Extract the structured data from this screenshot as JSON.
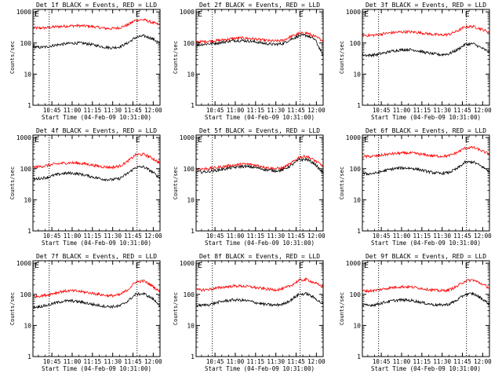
{
  "figure": {
    "xlabel": "Start Time (04-Feb-09 10:31:00)",
    "ylabel": "Counts/sec",
    "corner_marker": "E",
    "x_ticks": [
      "10:45",
      "11:00",
      "11:15",
      "11:30",
      "11:45",
      "12:00"
    ],
    "y_ticks": [
      "1",
      "10",
      "100",
      "1000"
    ],
    "colors": {
      "events": "#000000",
      "lld": "#ff0000",
      "axes": "#000000",
      "background": "#ffffff"
    }
  },
  "chart_data": [
    {
      "type": "line",
      "title": "Det 1f BLACK = Events, RED = LLD",
      "x": [
        "10:31",
        "10:35",
        "10:41",
        "10:47",
        "10:53",
        "10:59",
        "11:05",
        "11:11",
        "11:17",
        "11:23",
        "11:29",
        "11:35",
        "11:41",
        "11:47",
        "11:53",
        "11:59",
        "12:05"
      ],
      "xlim": [
        "10:31",
        "12:05"
      ],
      "ylim": [
        1,
        1200
      ],
      "yscale": "log",
      "grid": false,
      "vlines": [
        "10:43",
        "11:48"
      ],
      "series": [
        {
          "values": [
            310,
            300,
            310,
            330,
            345,
            355,
            360,
            350,
            330,
            300,
            290,
            310,
            380,
            540,
            560,
            460,
            380
          ]
        },
        {
          "values": [
            78,
            72,
            75,
            85,
            92,
            98,
            100,
            95,
            85,
            75,
            70,
            75,
            100,
            150,
            170,
            140,
            100
          ]
        }
      ]
    },
    {
      "type": "line",
      "title": "Det 2f BLACK = Events, RED = LLD",
      "x": [
        "10:31",
        "10:35",
        "10:41",
        "10:47",
        "10:53",
        "10:59",
        "11:05",
        "11:11",
        "11:17",
        "11:23",
        "11:29",
        "11:35",
        "11:41",
        "11:47",
        "11:53",
        "11:59",
        "12:05"
      ],
      "xlim": [
        "10:31",
        "12:05"
      ],
      "ylim": [
        1,
        1200
      ],
      "yscale": "log",
      "grid": false,
      "vlines": [
        "10:43",
        "11:48"
      ],
      "series": [
        {
          "values": [
            110,
            110,
            115,
            120,
            130,
            140,
            145,
            140,
            130,
            120,
            115,
            120,
            160,
            200,
            210,
            160,
            120
          ]
        },
        {
          "values": [
            85,
            90,
            95,
            100,
            110,
            120,
            120,
            115,
            105,
            95,
            90,
            95,
            130,
            170,
            175,
            130,
            40
          ]
        }
      ]
    },
    {
      "type": "line",
      "title": "Det 3f BLACK = Events, RED = LLD",
      "x": [
        "10:31",
        "10:35",
        "10:41",
        "10:47",
        "10:53",
        "10:59",
        "11:05",
        "11:11",
        "11:17",
        "11:23",
        "11:29",
        "11:35",
        "11:41",
        "11:47",
        "11:53",
        "11:59",
        "12:05"
      ],
      "xlim": [
        "10:31",
        "12:05"
      ],
      "ylim": [
        1,
        1200
      ],
      "yscale": "log",
      "grid": false,
      "vlines": [
        "10:43",
        "11:48"
      ],
      "series": [
        {
          "values": [
            180,
            175,
            180,
            200,
            215,
            225,
            230,
            220,
            205,
            190,
            180,
            190,
            240,
            330,
            340,
            280,
            220
          ]
        },
        {
          "values": [
            42,
            40,
            42,
            48,
            55,
            60,
            62,
            58,
            50,
            45,
            42,
            45,
            60,
            90,
            95,
            70,
            50
          ]
        }
      ]
    },
    {
      "type": "line",
      "title": "Det 4f BLACK = Events, RED = LLD",
      "x": [
        "10:31",
        "10:35",
        "10:41",
        "10:47",
        "10:53",
        "10:59",
        "11:05",
        "11:11",
        "11:17",
        "11:23",
        "11:29",
        "11:35",
        "11:41",
        "11:47",
        "11:53",
        "11:59",
        "12:05"
      ],
      "xlim": [
        "10:31",
        "12:05"
      ],
      "ylim": [
        1,
        1200
      ],
      "yscale": "log",
      "grid": false,
      "vlines": [
        "10:43",
        "11:48"
      ],
      "series": [
        {
          "values": [
            110,
            115,
            125,
            140,
            150,
            155,
            150,
            140,
            125,
            115,
            110,
            120,
            170,
            280,
            290,
            220,
            150
          ]
        },
        {
          "values": [
            45,
            48,
            52,
            62,
            70,
            72,
            68,
            60,
            52,
            46,
            44,
            48,
            70,
            110,
            115,
            80,
            50
          ]
        }
      ]
    },
    {
      "type": "line",
      "title": "Det 5f BLACK = Events, RED = LLD",
      "x": [
        "10:31",
        "10:35",
        "10:41",
        "10:47",
        "10:53",
        "10:59",
        "11:05",
        "11:11",
        "11:17",
        "11:23",
        "11:29",
        "11:35",
        "11:41",
        "11:47",
        "11:53",
        "11:59",
        "12:05"
      ],
      "xlim": [
        "10:31",
        "12:05"
      ],
      "ylim": [
        1,
        1200
      ],
      "yscale": "log",
      "grid": false,
      "vlines": [
        "10:43",
        "11:48"
      ],
      "series": [
        {
          "values": [
            100,
            98,
            102,
            110,
            120,
            130,
            140,
            138,
            125,
            110,
            100,
            105,
            145,
            230,
            250,
            180,
            120
          ]
        },
        {
          "values": [
            80,
            78,
            82,
            90,
            100,
            110,
            118,
            115,
            105,
            92,
            85,
            90,
            125,
            190,
            200,
            140,
            70
          ]
        }
      ]
    },
    {
      "type": "line",
      "title": "Det 6f BLACK = Events, RED = LLD",
      "x": [
        "10:31",
        "10:35",
        "10:41",
        "10:47",
        "10:53",
        "10:59",
        "11:05",
        "11:11",
        "11:17",
        "11:23",
        "11:29",
        "11:35",
        "11:41",
        "11:47",
        "11:53",
        "11:59",
        "12:05"
      ],
      "xlim": [
        "10:31",
        "12:05"
      ],
      "ylim": [
        1,
        1200
      ],
      "yscale": "log",
      "grid": false,
      "vlines": [
        "10:43",
        "11:48"
      ],
      "series": [
        {
          "values": [
            250,
            245,
            255,
            280,
            300,
            315,
            320,
            305,
            280,
            260,
            250,
            260,
            330,
            460,
            480,
            380,
            290
          ]
        },
        {
          "values": [
            70,
            68,
            72,
            85,
            98,
            105,
            105,
            98,
            85,
            75,
            70,
            75,
            100,
            160,
            165,
            120,
            80
          ]
        }
      ]
    },
    {
      "type": "line",
      "title": "Det 7f BLACK = Events, RED = LLD",
      "x": [
        "10:31",
        "10:35",
        "10:41",
        "10:47",
        "10:53",
        "10:59",
        "11:05",
        "11:11",
        "11:17",
        "11:23",
        "11:29",
        "11:35",
        "11:41",
        "11:47",
        "11:53",
        "11:59",
        "12:05"
      ],
      "xlim": [
        "10:31",
        "12:05"
      ],
      "ylim": [
        1,
        1200
      ],
      "yscale": "log",
      "grid": false,
      "vlines": [
        "10:43",
        "11:48"
      ],
      "series": [
        {
          "values": [
            85,
            88,
            95,
            110,
            125,
            130,
            125,
            115,
            105,
            95,
            90,
            95,
            140,
            250,
            270,
            190,
            120
          ]
        },
        {
          "values": [
            38,
            40,
            44,
            52,
            60,
            62,
            58,
            52,
            46,
            42,
            40,
            42,
            60,
            100,
            105,
            75,
            45
          ]
        }
      ]
    },
    {
      "type": "line",
      "title": "Det 8f BLACK = Events, RED = LLD",
      "x": [
        "10:31",
        "10:35",
        "10:41",
        "10:47",
        "10:53",
        "10:59",
        "11:05",
        "11:11",
        "11:17",
        "11:23",
        "11:29",
        "11:35",
        "11:41",
        "11:47",
        "11:53",
        "11:59",
        "12:05"
      ],
      "xlim": [
        "10:31",
        "12:05"
      ],
      "ylim": [
        1,
        1200
      ],
      "yscale": "log",
      "grid": false,
      "vlines": [
        "10:43",
        "11:48"
      ],
      "series": [
        {
          "values": [
            140,
            138,
            145,
            160,
            175,
            185,
            185,
            175,
            160,
            148,
            140,
            148,
            190,
            280,
            300,
            230,
            170
          ]
        },
        {
          "values": [
            45,
            44,
            47,
            55,
            62,
            66,
            65,
            60,
            52,
            47,
            45,
            48,
            65,
            100,
            105,
            75,
            48
          ]
        }
      ]
    },
    {
      "type": "line",
      "title": "Det 9f BLACK = Events, RED = LLD",
      "x": [
        "10:31",
        "10:35",
        "10:41",
        "10:47",
        "10:53",
        "10:59",
        "11:05",
        "11:11",
        "11:17",
        "11:23",
        "11:29",
        "11:35",
        "11:41",
        "11:47",
        "11:53",
        "11:59",
        "12:05"
      ],
      "xlim": [
        "10:31",
        "12:05"
      ],
      "ylim": [
        1,
        1200
      ],
      "yscale": "log",
      "grid": false,
      "vlines": [
        "10:43",
        "11:48"
      ],
      "series": [
        {
          "values": [
            130,
            128,
            135,
            150,
            165,
            175,
            175,
            165,
            150,
            138,
            130,
            138,
            180,
            270,
            290,
            220,
            160
          ]
        },
        {
          "values": [
            45,
            44,
            47,
            55,
            62,
            66,
            65,
            60,
            52,
            47,
            45,
            48,
            65,
            100,
            105,
            75,
            48
          ]
        }
      ]
    }
  ]
}
